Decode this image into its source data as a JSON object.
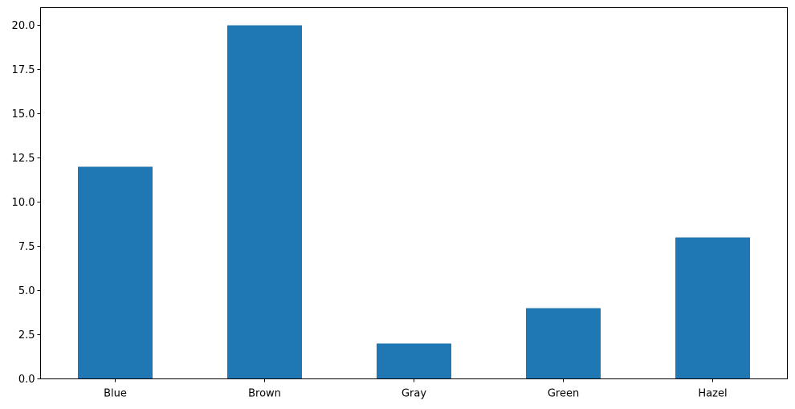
{
  "chart_data": {
    "type": "bar",
    "categories": [
      "Blue",
      "Brown",
      "Gray",
      "Green",
      "Hazel"
    ],
    "values": [
      12,
      20,
      2,
      4,
      8
    ],
    "title": "",
    "xlabel": "",
    "ylabel": "",
    "ylim": [
      0,
      21
    ],
    "yticks": [
      0,
      2.5,
      5,
      7.5,
      10,
      12.5,
      15,
      17.5,
      20
    ],
    "ytick_labels": [
      "0.0",
      "2.5",
      "5.0",
      "7.5",
      "10.0",
      "12.5",
      "15.0",
      "17.5",
      "20.0"
    ],
    "grid": false,
    "legend": "none",
    "bar_color": "#1f77b4"
  }
}
